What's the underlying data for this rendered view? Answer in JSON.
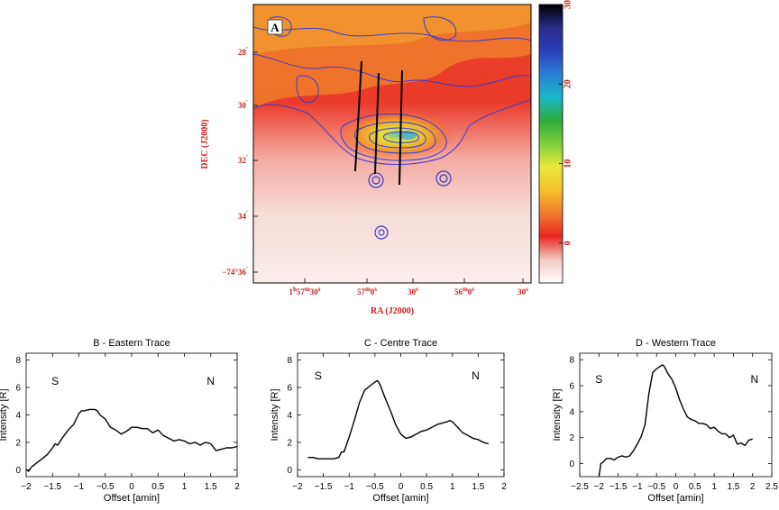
{
  "map": {
    "panel_label": "A",
    "xlabel": "RA (J2000)",
    "ylabel": "DEC (J2000)",
    "ra_ticks": [
      {
        "pre": "1",
        "sup1": "h",
        "mid": "57",
        "sup2": "m",
        "val": "30",
        "sup3": "s"
      },
      {
        "pre": "",
        "sup1": "",
        "mid": "57",
        "sup2": "m",
        "val": "0",
        "sup3": "s"
      },
      {
        "pre": "",
        "sup1": "",
        "mid": "",
        "sup2": "",
        "val": "30",
        "sup3": "s"
      },
      {
        "pre": "",
        "sup1": "",
        "mid": "56",
        "sup2": "m",
        "val": "0",
        "sup3": "s"
      },
      {
        "pre": "",
        "sup1": "",
        "mid": "",
        "sup2": "",
        "val": "30",
        "sup3": "s"
      }
    ],
    "dec_ticks": [
      {
        "pre": "",
        "val": "28",
        "sup": "′"
      },
      {
        "pre": "",
        "val": "30",
        "sup": "′"
      },
      {
        "pre": "",
        "val": "32",
        "sup": "′"
      },
      {
        "pre": "",
        "val": "34",
        "sup": "′"
      },
      {
        "pre": "−74°",
        "val": "36",
        "sup": "′"
      }
    ],
    "colorbar": {
      "ticks": [
        "30",
        "20",
        "10",
        "0"
      ],
      "tick_values": [
        30,
        20,
        10,
        0
      ],
      "range": [
        -5,
        30
      ],
      "colors": [
        "#ffffff",
        "#f2c9c4",
        "#e8271e",
        "#f07a2e",
        "#f6c22a",
        "#e8e93a",
        "#7fcf3a",
        "#2eab3c",
        "#19b7c6",
        "#2a7fd6",
        "#2a3fb8",
        "#2a2a8a",
        "#000000"
      ]
    },
    "trace_colors": {
      "contour": "#3a3ad6",
      "accent": "#cc1f1f"
    }
  },
  "chart_data": [
    {
      "type": "line",
      "title": "B - Eastern Trace",
      "xlabel": "Offset [amin]",
      "ylabel": "Intensity [R]",
      "xlim": [
        -2,
        2
      ],
      "ylim": [
        -0.5,
        8.5
      ],
      "xticks": [
        -2,
        -1.5,
        -1,
        -0.5,
        0,
        0.5,
        1,
        1.5,
        2
      ],
      "xticklabels": [
        "−2",
        "−1.5",
        "−1",
        "−0.5",
        "0",
        "0.5",
        "1",
        "1.5",
        "2"
      ],
      "yticks": [
        0,
        2,
        4,
        6,
        8
      ],
      "yticklabels": [
        "0",
        "2",
        "4",
        "6",
        "8"
      ],
      "annotations": [
        {
          "text": "S",
          "x": -1.45,
          "y": 6.2
        },
        {
          "text": "N",
          "x": 1.5,
          "y": 6.2
        }
      ],
      "x": [
        -2.0,
        -1.95,
        -1.9,
        -1.8,
        -1.7,
        -1.6,
        -1.5,
        -1.45,
        -1.4,
        -1.3,
        -1.2,
        -1.1,
        -1.0,
        -0.95,
        -0.9,
        -0.8,
        -0.7,
        -0.65,
        -0.6,
        -0.5,
        -0.4,
        -0.3,
        -0.2,
        -0.1,
        0.0,
        0.1,
        0.2,
        0.3,
        0.4,
        0.5,
        0.6,
        0.7,
        0.8,
        0.9,
        1.0,
        1.1,
        1.2,
        1.3,
        1.4,
        1.5,
        1.6,
        1.7,
        1.8,
        1.9,
        2.0
      ],
      "y": [
        0.0,
        -0.1,
        0.2,
        0.5,
        0.8,
        1.1,
        1.6,
        1.9,
        1.8,
        2.4,
        2.9,
        3.3,
        4.1,
        4.3,
        4.3,
        4.4,
        4.4,
        4.3,
        4.0,
        3.7,
        3.1,
        2.9,
        2.6,
        2.8,
        3.1,
        3.1,
        3.0,
        3.0,
        2.7,
        2.9,
        2.5,
        2.3,
        2.1,
        2.2,
        2.1,
        1.9,
        2.0,
        1.8,
        2.0,
        1.9,
        1.4,
        1.5,
        1.6,
        1.6,
        1.7
      ]
    },
    {
      "type": "line",
      "title": "C - Centre Trace",
      "xlabel": "Offset [amin]",
      "ylabel": "Intensity [R]",
      "xlim": [
        -2,
        2
      ],
      "ylim": [
        -0.5,
        8.5
      ],
      "xticks": [
        -2,
        -1.5,
        -1,
        -0.5,
        0,
        0.5,
        1,
        1.5,
        2
      ],
      "xticklabels": [
        "−2",
        "−1.5",
        "−1",
        "−0.5",
        "0",
        "0.5",
        "1",
        "1.5",
        "2"
      ],
      "yticks": [
        0,
        2,
        4,
        6,
        8
      ],
      "yticklabels": [
        "0",
        "2",
        "4",
        "6",
        "8"
      ],
      "annotations": [
        {
          "text": "S",
          "x": -1.6,
          "y": 6.6
        },
        {
          "text": "N",
          "x": 1.45,
          "y": 6.6
        }
      ],
      "x": [
        -1.8,
        -1.7,
        -1.6,
        -1.5,
        -1.4,
        -1.3,
        -1.2,
        -1.15,
        -1.1,
        -1.0,
        -0.9,
        -0.8,
        -0.7,
        -0.6,
        -0.5,
        -0.45,
        -0.4,
        -0.3,
        -0.2,
        -0.1,
        0.0,
        0.1,
        0.2,
        0.3,
        0.4,
        0.5,
        0.6,
        0.7,
        0.8,
        0.9,
        0.95,
        1.0,
        1.1,
        1.2,
        1.3,
        1.4,
        1.5,
        1.6,
        1.7
      ],
      "y": [
        0.9,
        0.9,
        0.8,
        0.8,
        0.8,
        0.8,
        0.9,
        1.3,
        1.3,
        2.4,
        3.6,
        4.9,
        5.8,
        6.1,
        6.4,
        6.5,
        6.2,
        5.2,
        4.3,
        3.3,
        2.6,
        2.3,
        2.4,
        2.6,
        2.8,
        2.9,
        3.1,
        3.3,
        3.4,
        3.5,
        3.6,
        3.5,
        3.1,
        2.7,
        2.5,
        2.3,
        2.2,
        2.0,
        1.9
      ]
    },
    {
      "type": "line",
      "title": "D - Western Trace",
      "xlabel": "Offset [amin]",
      "ylabel": "Intensity [R]",
      "xlim": [
        -2.5,
        2.5
      ],
      "ylim": [
        -1,
        8.5
      ],
      "xticks": [
        -2.5,
        -2,
        -1.5,
        -1,
        -0.5,
        0,
        0.5,
        1,
        1.5,
        2,
        2.5
      ],
      "xticklabels": [
        "−2.5",
        "−2",
        "−1.5",
        "−1",
        "−0.5",
        "0",
        "0.5",
        "1",
        "1.5",
        "2",
        "2.5"
      ],
      "yticks": [
        0,
        2,
        4,
        6,
        8
      ],
      "yticklabels": [
        "0",
        "2",
        "4",
        "6",
        "8"
      ],
      "annotations": [
        {
          "text": "S",
          "x": -2.0,
          "y": 6.2
        },
        {
          "text": "N",
          "x": 2.05,
          "y": 6.2
        }
      ],
      "x": [
        -2.0,
        -1.95,
        -1.9,
        -1.8,
        -1.7,
        -1.6,
        -1.5,
        -1.4,
        -1.3,
        -1.2,
        -1.1,
        -1.0,
        -0.9,
        -0.8,
        -0.7,
        -0.6,
        -0.5,
        -0.4,
        -0.35,
        -0.3,
        -0.2,
        -0.1,
        0.0,
        0.1,
        0.2,
        0.3,
        0.4,
        0.5,
        0.6,
        0.7,
        0.8,
        0.9,
        1.0,
        1.1,
        1.2,
        1.3,
        1.4,
        1.5,
        1.6,
        1.7,
        1.8,
        1.9,
        2.0
      ],
      "y": [
        -1.0,
        0.0,
        0.1,
        0.4,
        0.4,
        0.3,
        0.5,
        0.6,
        0.5,
        0.6,
        1.0,
        1.5,
        2.1,
        3.0,
        5.4,
        7.0,
        7.3,
        7.5,
        7.6,
        7.5,
        6.9,
        6.5,
        5.8,
        4.9,
        4.2,
        3.6,
        3.4,
        3.3,
        3.1,
        3.1,
        3.0,
        2.7,
        2.8,
        2.5,
        2.3,
        2.3,
        2.0,
        2.2,
        1.5,
        1.6,
        1.4,
        1.8,
        1.9
      ]
    }
  ]
}
